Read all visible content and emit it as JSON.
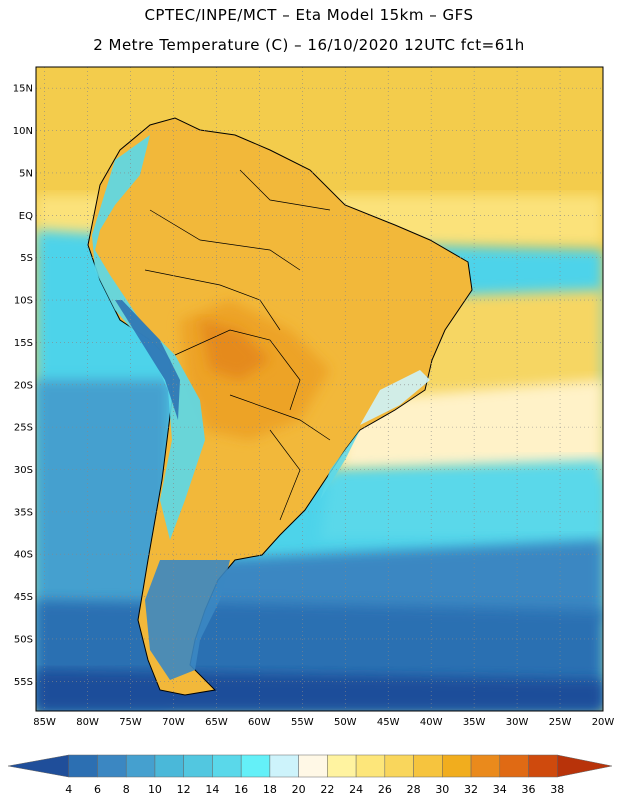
{
  "title": {
    "line1": "CPTEC/INPE/MCT –  Eta Model 15km – GFS",
    "line2": "2 Metre Temperature (C) – 16/10/2020 12UTC fct=61h"
  },
  "map": {
    "lat_labels": [
      "15N",
      "10N",
      "5N",
      "EQ",
      "5S",
      "10S",
      "15S",
      "20S",
      "25S",
      "30S",
      "35S",
      "40S",
      "45S",
      "50S",
      "55S"
    ],
    "lon_labels": [
      "85W",
      "80W",
      "75W",
      "70W",
      "65W",
      "60W",
      "55W",
      "50W",
      "45W",
      "40W",
      "35W",
      "30W",
      "25W",
      "20W"
    ],
    "lat_range": [
      17.5,
      -58.5
    ],
    "lon_range": [
      -86.0,
      -20.0
    ],
    "gridlines": "dotted"
  },
  "colorbar": {
    "labels": [
      "4",
      "6",
      "8",
      "10",
      "12",
      "14",
      "16",
      "18",
      "20",
      "22",
      "24",
      "26",
      "28",
      "30",
      "32",
      "34",
      "36",
      "38"
    ],
    "colors": [
      "#1f4e9a",
      "#2c6fb2",
      "#3b87c2",
      "#45a0cf",
      "#4ab8d9",
      "#52c7e0",
      "#5ad8ea",
      "#64f0f8",
      "#cdf3fb",
      "#fff8e6",
      "#fff3a0",
      "#fde67a",
      "#f9d65c",
      "#f6c43e",
      "#f1ad1e",
      "#ea8a1c",
      "#e06a14",
      "#cf4a0d",
      "#b8330a"
    ]
  }
}
